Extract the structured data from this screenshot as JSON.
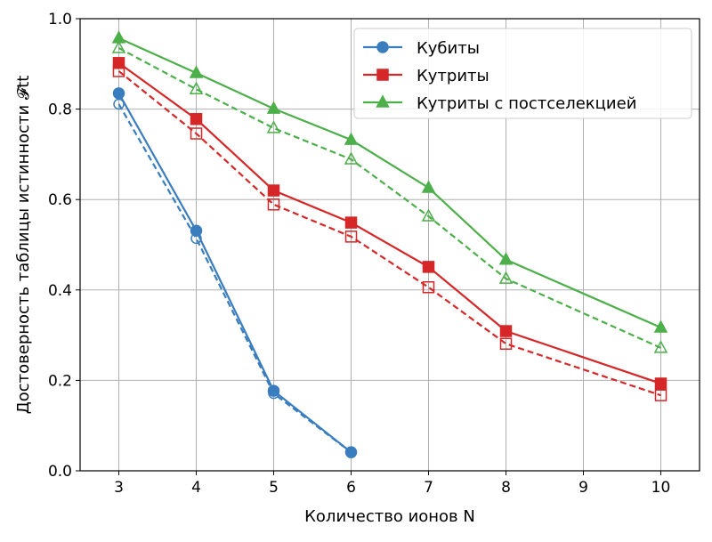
{
  "chart_data": {
    "type": "line",
    "xlabel": "Количество ионов N",
    "ylabel": "Достоверность таблицы истинности 𝓕tt",
    "xlim": [
      2.5,
      10.5
    ],
    "ylim": [
      0,
      1
    ],
    "xticks": [
      3,
      4,
      5,
      6,
      7,
      8,
      9,
      10
    ],
    "yticks": [
      0.0,
      0.2,
      0.4,
      0.6,
      0.8,
      1.0
    ],
    "grid": true,
    "legend_position": "top-right",
    "series": [
      {
        "name": "Кубиты",
        "color": "#3a7dbf",
        "marker": "circle",
        "x": [
          3,
          4,
          5,
          6
        ],
        "values": [
          0.835,
          0.531,
          0.177,
          0.041
        ],
        "dashed": {
          "x": [
            3,
            4,
            5,
            6
          ],
          "values": [
            0.811,
            0.514,
            0.171,
            0.041
          ]
        }
      },
      {
        "name": "Кутриты",
        "color": "#d62728",
        "marker": "square",
        "x": [
          3,
          4,
          5,
          6,
          7,
          8,
          10
        ],
        "values": [
          0.902,
          0.778,
          0.62,
          0.549,
          0.451,
          0.309,
          0.193
        ],
        "dashed": {
          "x": [
            3,
            4,
            5,
            6,
            7,
            8,
            10
          ],
          "values": [
            0.884,
            0.746,
            0.589,
            0.518,
            0.406,
            0.281,
            0.167
          ]
        }
      },
      {
        "name": "Кутриты с постселекцией",
        "color": "#4daf4a",
        "marker": "triangle",
        "x": [
          3,
          4,
          5,
          6,
          7,
          8,
          10
        ],
        "values": [
          0.957,
          0.88,
          0.801,
          0.732,
          0.626,
          0.467,
          0.317
        ],
        "dashed": {
          "x": [
            3,
            4,
            5,
            6,
            7,
            8,
            10
          ],
          "values": [
            0.935,
            0.844,
            0.758,
            0.689,
            0.563,
            0.425,
            0.272
          ]
        }
      }
    ]
  }
}
